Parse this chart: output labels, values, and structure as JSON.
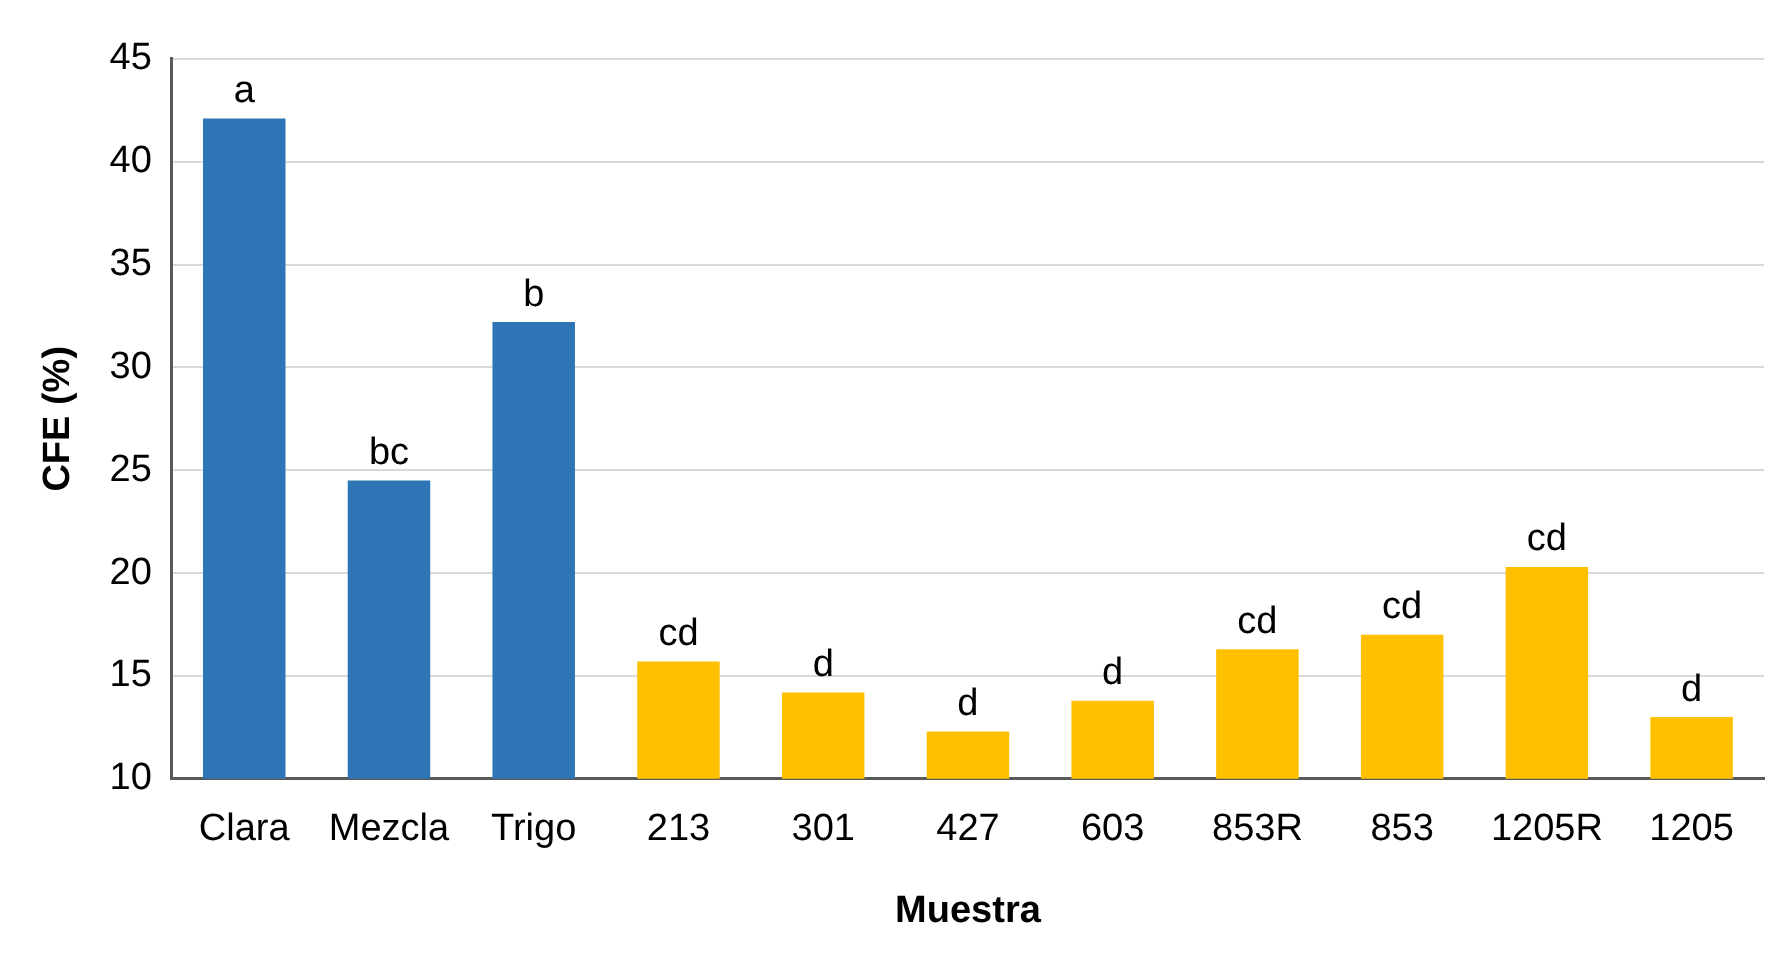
{
  "chart_data": {
    "type": "bar",
    "xlabel": "Muestra",
    "ylabel": "CFE (%)",
    "categories": [
      "Clara",
      "Mezcla",
      "Trigo",
      "213",
      "301",
      "427",
      "603",
      "853R",
      "853",
      "1205R",
      "1205"
    ],
    "values": [
      42.1,
      24.5,
      32.2,
      15.7,
      14.2,
      12.3,
      13.8,
      16.3,
      17.0,
      20.3,
      13.0
    ],
    "colors": [
      "#2e75b6",
      "#2e75b6",
      "#2e75b6",
      "#ffc000",
      "#ffc000",
      "#ffc000",
      "#ffc000",
      "#ffc000",
      "#ffc000",
      "#ffc000",
      "#ffc000"
    ],
    "ylim": [
      10,
      45
    ],
    "yticks": [
      10,
      15,
      20,
      25,
      30,
      35,
      40,
      45
    ],
    "grid": "y",
    "legend": false,
    "annotations": [
      {
        "text": "a",
        "x": "Clara",
        "y": 42.1
      },
      {
        "text": "bc",
        "x": "Mezcla",
        "y": 24.5
      },
      {
        "text": "b",
        "x": "Trigo",
        "y": 32.2
      },
      {
        "text": "cd",
        "x": "213",
        "y": 15.7
      },
      {
        "text": "d",
        "x": "301",
        "y": 14.2
      },
      {
        "text": "d",
        "x": "427",
        "y": 12.3
      },
      {
        "text": "d",
        "x": "603",
        "y": 13.8
      },
      {
        "text": "cd",
        "x": "853R",
        "y": 16.3
      },
      {
        "text": "cd",
        "x": "853",
        "y": 17.0
      },
      {
        "text": "cd",
        "x": "1205R",
        "y": 20.3
      },
      {
        "text": "d",
        "x": "1205",
        "y": 13.0
      }
    ]
  }
}
